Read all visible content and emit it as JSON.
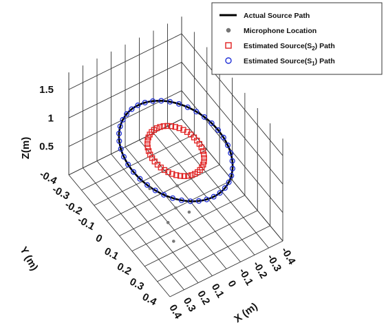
{
  "chart_data": {
    "type": "scatter",
    "title": "",
    "xlabel": "X (m)",
    "ylabel": "Y (m)",
    "zlabel": "Z(m)",
    "x_ticks": [
      "0.4",
      "0.3",
      "0.2",
      "0.1",
      "0",
      "-0.1",
      "-0.2",
      "-0.3",
      "-0.4"
    ],
    "y_ticks": [
      "-0.4",
      "-0.3",
      "-0.2",
      "-0.1",
      "0",
      "0.1",
      "0.2",
      "0.3",
      "0.4"
    ],
    "z_ticks": [
      "0.5",
      "1",
      "1.5"
    ],
    "xlim": [
      -0.4,
      0.4
    ],
    "ylim": [
      -0.4,
      0.4
    ],
    "zlim": [
      0,
      1.8
    ],
    "grid": true,
    "legend_position": "top-right",
    "legend": [
      {
        "label": "Actual Source Path"
      },
      {
        "label": "Microphone Location"
      },
      {
        "label": "Estimated Source(S",
        "sub": "2",
        "suffix": ") Path"
      },
      {
        "label": "Estimated Source(S",
        "sub": "1",
        "suffix": ") Path"
      }
    ],
    "series": [
      {
        "name": "Actual Source Path",
        "shape": "circle",
        "center": [
          0,
          0
        ],
        "radius": 0.3,
        "z": 1.0,
        "color": "#000000"
      },
      {
        "name": "Microphone Location",
        "points": [
          [
            0.05,
            -0.15,
            0
          ],
          [
            -0.1,
            -0.1,
            0
          ],
          [
            0.1,
            0.05,
            0
          ],
          [
            -0.05,
            0.05,
            0
          ],
          [
            0.0,
            0.0,
            0
          ],
          [
            0.15,
            0.15,
            0
          ]
        ],
        "color": "#777777"
      },
      {
        "name": "Estimated Source(S2) Path",
        "shape": "circle",
        "center": [
          0,
          0
        ],
        "radius": 0.15,
        "z": 1.0,
        "marker": "square",
        "color": "#e02020"
      },
      {
        "name": "Estimated Source(S1) Path",
        "shape": "circle",
        "center": [
          0,
          0
        ],
        "radius": 0.3,
        "z": 1.0,
        "marker": "circle",
        "color": "#1f2fd6"
      }
    ]
  }
}
